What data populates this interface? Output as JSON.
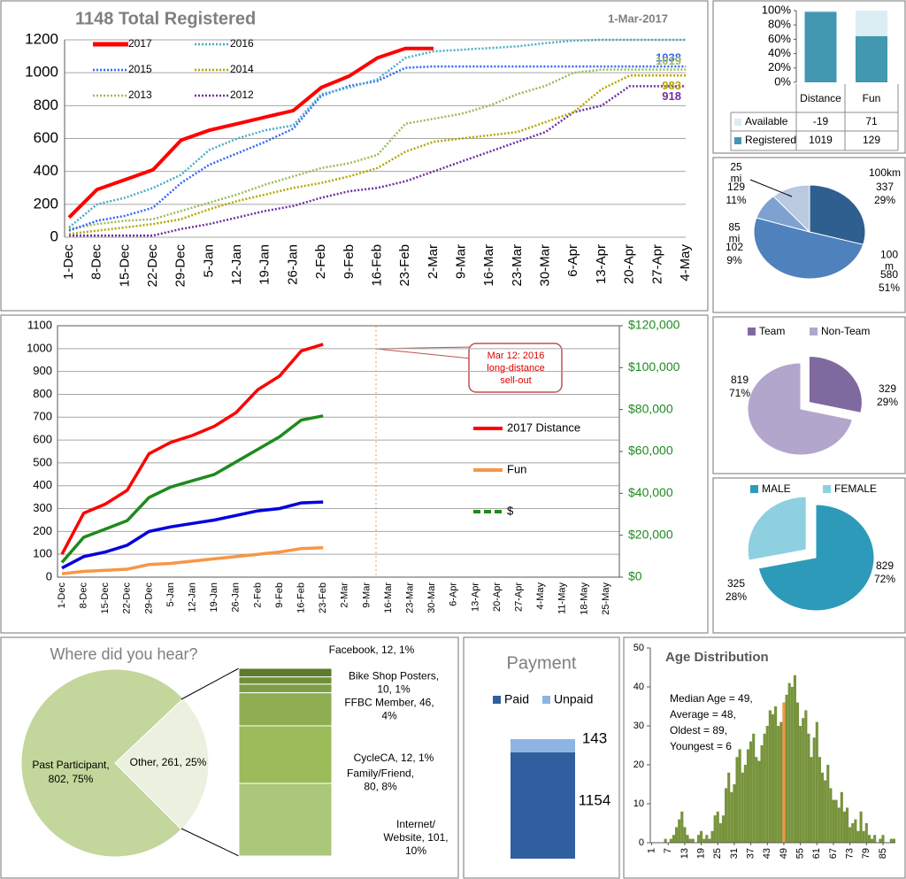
{
  "chart_data": [
    {
      "type": "line",
      "title": "1148 Total Registered",
      "subtitle": "1-Mar-2017",
      "legend": "top-left",
      "grid": true,
      "categories": [
        "1-Dec",
        "8-Dec",
        "15-Dec",
        "22-Dec",
        "29-Dec",
        "5-Jan",
        "12-Jan",
        "19-Jan",
        "26-Jan",
        "2-Feb",
        "9-Feb",
        "16-Feb",
        "23-Feb",
        "2-Mar",
        "9-Mar",
        "16-Mar",
        "23-Mar",
        "30-Mar",
        "6-Apr",
        "13-Apr",
        "20-Apr",
        "27-Apr",
        "4-May"
      ],
      "ylim": [
        0,
        1200
      ],
      "yticks": [
        0,
        200,
        400,
        600,
        800,
        1000,
        1200
      ],
      "series": [
        {
          "name": "2017",
          "color": "#ff0000",
          "line_style": "solid",
          "values": [
            120,
            290,
            350,
            410,
            590,
            650,
            690,
            730,
            770,
            910,
            980,
            1090,
            1148,
            1148,
            null,
            null,
            null,
            null,
            null,
            null,
            null,
            null,
            null
          ]
        },
        {
          "name": "2016",
          "color": "#4bacc6",
          "line_style": "dotted",
          "values": [
            60,
            200,
            240,
            300,
            380,
            530,
            600,
            650,
            680,
            870,
            910,
            960,
            1090,
            1130,
            1140,
            1150,
            1160,
            1180,
            1195,
            1200,
            1200,
            1200,
            1200
          ]
        },
        {
          "name": "2015",
          "color": "#3366ff",
          "line_style": "dotted",
          "end_label": "1038",
          "values": [
            40,
            100,
            130,
            180,
            330,
            440,
            510,
            580,
            660,
            860,
            920,
            950,
            1030,
            1038,
            1038,
            1038,
            1038,
            1038,
            1038,
            1038,
            1038,
            1038,
            1038
          ]
        },
        {
          "name": "2014",
          "color": "#b3a800",
          "line_style": "dotted",
          "end_label": "983",
          "values": [
            20,
            40,
            60,
            80,
            110,
            170,
            220,
            260,
            300,
            330,
            370,
            420,
            520,
            580,
            600,
            620,
            640,
            700,
            760,
            900,
            983,
            983,
            983
          ]
        },
        {
          "name": "2013",
          "color": "#9bbb59",
          "line_style": "dotted",
          "end_label": "1019",
          "values": [
            50,
            80,
            100,
            110,
            160,
            210,
            260,
            320,
            370,
            420,
            450,
            500,
            690,
            720,
            750,
            800,
            870,
            920,
            1000,
            1019,
            1019,
            1019,
            1019
          ]
        },
        {
          "name": "2012",
          "color": "#7030a0",
          "line_style": "dotted",
          "end_label": "918",
          "values": [
            10,
            10,
            10,
            10,
            50,
            80,
            120,
            160,
            190,
            240,
            280,
            300,
            340,
            400,
            460,
            520,
            580,
            640,
            760,
            800,
            918,
            918,
            918
          ]
        }
      ]
    },
    {
      "type": "stacked_bar_table",
      "categories": [
        "Distance",
        "Fun"
      ],
      "ylim": [
        0,
        100
      ],
      "yticks": [
        {
          "value": 0,
          "label": "0%"
        },
        {
          "value": 20,
          "label": "20%"
        },
        {
          "value": 40,
          "label": "40%"
        },
        {
          "value": 60,
          "label": "60%"
        },
        {
          "value": 80,
          "label": "80%"
        },
        {
          "value": 100,
          "label": "100%"
        }
      ],
      "series": [
        {
          "name": "Available",
          "color": "#dbeef4",
          "values": [
            -19,
            71
          ]
        },
        {
          "name": "Registered",
          "color": "#4198b0",
          "values": [
            1019,
            129
          ]
        }
      ]
    },
    {
      "type": "pie",
      "categories": [
        "100km",
        "100 m",
        "85 mi",
        "25 mi"
      ],
      "values": [
        337,
        580,
        102,
        129
      ],
      "percent_labels": [
        "29%",
        "51%",
        "9%",
        "11%"
      ],
      "colors": [
        "#2e5f8e",
        "#4f81bd",
        "#7ea1d0",
        "#b8c9e0"
      ]
    },
    {
      "type": "line",
      "legend": "right",
      "grid": true,
      "categories": [
        "1-Dec",
        "8-Dec",
        "15-Dec",
        "22-Dec",
        "29-Dec",
        "5-Jan",
        "12-Jan",
        "19-Jan",
        "26-Jan",
        "2-Feb",
        "9-Feb",
        "16-Feb",
        "23-Feb",
        "2-Mar",
        "9-Mar",
        "16-Mar",
        "23-Mar",
        "30-Mar",
        "6-Apr",
        "13-Apr",
        "20-Apr",
        "27-Apr",
        "4-May",
        "11-May",
        "18-May",
        "25-May"
      ],
      "ylim": [
        0,
        1100
      ],
      "yticks": [
        0,
        100,
        200,
        300,
        400,
        500,
        600,
        700,
        800,
        900,
        1000,
        1100
      ],
      "y2lim": [
        0,
        120000
      ],
      "y2ticks": [
        {
          "value": 0,
          "label": "$0"
        },
        {
          "value": 20000,
          "label": "$20,000"
        },
        {
          "value": 40000,
          "label": "$40,000"
        },
        {
          "value": 60000,
          "label": "$60,000"
        },
        {
          "value": 80000,
          "label": "$80,000"
        },
        {
          "value": 100000,
          "label": "$100,000"
        },
        {
          "value": 120000,
          "label": "$120,000"
        }
      ],
      "annotation": "Mar 12: 2016 long-distance sell-out",
      "series": [
        {
          "name": "2017 Distance",
          "color": "#ff0000",
          "values": [
            100,
            280,
            320,
            380,
            540,
            590,
            620,
            660,
            720,
            820,
            880,
            990,
            1019,
            null,
            null,
            null,
            null,
            null,
            null,
            null,
            null,
            null,
            null,
            null,
            null,
            null
          ]
        },
        {
          "name": "Fun",
          "color": "#f79646",
          "values": [
            15,
            25,
            30,
            35,
            55,
            60,
            70,
            80,
            90,
            100,
            110,
            125,
            129,
            null,
            null,
            null,
            null,
            null,
            null,
            null,
            null,
            null,
            null,
            null,
            null,
            null
          ]
        },
        {
          "name": "$",
          "color": "#1f8a1f",
          "axis": "y2",
          "legend_dashed": true,
          "values": [
            7000,
            19000,
            23000,
            27000,
            38000,
            43000,
            46000,
            49000,
            55000,
            61000,
            67000,
            75000,
            77000,
            null,
            null,
            null,
            null,
            null,
            null,
            null,
            null,
            null,
            null,
            null,
            null,
            null
          ]
        },
        {
          "color": "#0000dd",
          "values": [
            40,
            90,
            110,
            140,
            200,
            220,
            235,
            250,
            270,
            290,
            300,
            325,
            329,
            null,
            null,
            null,
            null,
            null,
            null,
            null,
            null,
            null,
            null,
            null,
            null,
            null
          ]
        }
      ]
    },
    {
      "type": "pie",
      "legend": "top",
      "categories": [
        "Team",
        "Non-Team"
      ],
      "values": [
        329,
        819
      ],
      "percent_labels": [
        "29%",
        "71%"
      ],
      "colors": [
        "#7f6a9f",
        "#b3a6cc"
      ]
    },
    {
      "type": "pie",
      "legend": "top",
      "categories": [
        "MALE",
        "FEMALE"
      ],
      "values": [
        829,
        325
      ],
      "percent_labels": [
        "72%",
        "28%"
      ],
      "colors": [
        "#2e9ab9",
        "#8ecfe0"
      ]
    },
    {
      "type": "pie_of_bar",
      "title": "Where did you hear?",
      "labels": [
        "Past Participant, 802, 75%",
        "Other, 261, 25%"
      ],
      "values": [
        802,
        261
      ],
      "colors": [
        "#c3d69b",
        "#ebf1de"
      ],
      "breakdown": {
        "labels": [
          "Facebook, 12, 1%",
          "Bike Shop Posters, 10, 1%",
          "CycleCA, 12, 1%",
          "FFBC Member, 46, 4%",
          "Family/Friend, 80, 8%",
          "Internet/ Website, 101, 10%"
        ],
        "values": [
          12,
          10,
          12,
          46,
          80,
          101
        ],
        "colors": [
          "#5d7a2e",
          "#6f8f38",
          "#7e9e45",
          "#8fae52",
          "#9cbb59",
          "#aac77a"
        ]
      }
    },
    {
      "type": "stacked_bar",
      "title": "Payment",
      "series": [
        {
          "name": "Paid",
          "color": "#2f5f9e",
          "values": [
            1154
          ]
        },
        {
          "name": "Unpaid",
          "color": "#8eb4e3",
          "values": [
            143
          ]
        }
      ]
    },
    {
      "type": "histogram",
      "title": "Age Distribution",
      "color": "#77933c",
      "median": 49,
      "median_color": "#f79646",
      "annotation": [
        "Median Age = 49,",
        "Average = 48,",
        "Oldest = 89,",
        "Youngest = 6"
      ],
      "xlim": [
        0.5,
        89.5
      ],
      "xticks": [
        1,
        7,
        13,
        19,
        25,
        31,
        37,
        43,
        49,
        55,
        61,
        67,
        73,
        79,
        85
      ],
      "ylim": [
        0,
        50
      ],
      "yticks": [
        0,
        10,
        20,
        30,
        40,
        50
      ],
      "bins": [
        0.5,
        1.5,
        2.5,
        3.5,
        4.5,
        5.5,
        6.5,
        7.5,
        8.5,
        9.5,
        10.5,
        11.5,
        12.5,
        13.5,
        14.5,
        15.5,
        16.5,
        17.5,
        18.5,
        19.5,
        20.5,
        21.5,
        22.5,
        23.5,
        24.5,
        25.5,
        26.5,
        27.5,
        28.5,
        29.5,
        30.5,
        31.5,
        32.5,
        33.5,
        34.5,
        35.5,
        36.5,
        37.5,
        38.5,
        39.5,
        40.5,
        41.5,
        42.5,
        43.5,
        44.5,
        45.5,
        46.5,
        47.5,
        48.5,
        49.5,
        50.5,
        51.5,
        52.5,
        53.5,
        54.5,
        55.5,
        56.5,
        57.5,
        58.5,
        59.5,
        60.5,
        61.5,
        62.5,
        63.5,
        64.5,
        65.5,
        66.5,
        67.5,
        68.5,
        69.5,
        70.5,
        71.5,
        72.5,
        73.5,
        74.5,
        75.5,
        76.5,
        77.5,
        78.5,
        79.5,
        80.5,
        81.5,
        82.5,
        83.5,
        84.5,
        85.5,
        86.5,
        87.5,
        88.5,
        89.5
      ],
      "counts": [
        0,
        0,
        0,
        0,
        0,
        1,
        0,
        1,
        2,
        4,
        6,
        8,
        4,
        2,
        1,
        1,
        0,
        2,
        3,
        1,
        2,
        1,
        3,
        7,
        8,
        5,
        7,
        14,
        18,
        13,
        15,
        22,
        24,
        18,
        20,
        24,
        26,
        28,
        22,
        21,
        25,
        28,
        30,
        34,
        33,
        35,
        30,
        31,
        36,
        38,
        41,
        40,
        43,
        36,
        30,
        32,
        34,
        28,
        22,
        27,
        31,
        22,
        18,
        16,
        20,
        14,
        11,
        11,
        9,
        13,
        8,
        9,
        4,
        5,
        6,
        3,
        8,
        3,
        5,
        2,
        1,
        2,
        0,
        1,
        2,
        0,
        0,
        1,
        1
      ]
    }
  ]
}
